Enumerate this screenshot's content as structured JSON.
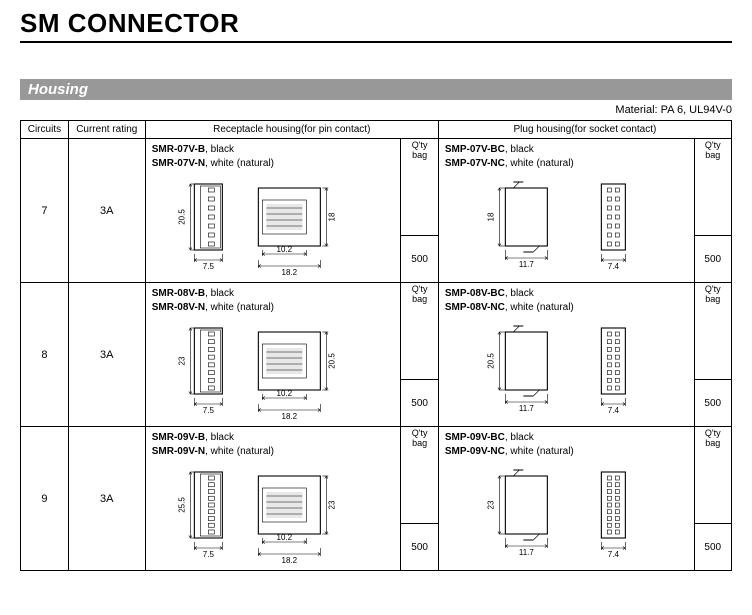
{
  "title": "SM CONNECTOR",
  "section": "Housing",
  "material": "Material: PA 6, UL94V-0",
  "headers": {
    "circuits": "Circuits",
    "current": "Current rating",
    "receptacle": "Receptacle housing(for pin contact)",
    "plug": "Plug housing(for socket contact)",
    "qty": "Q'ty / bag"
  },
  "rows": [
    {
      "circuits": "7",
      "rating": "3A",
      "recept_parts": [
        {
          "pn": "SMR-07V-B",
          "color": "black"
        },
        {
          "pn": "SMR-07V-N",
          "color": "white (natural)"
        }
      ],
      "recept_dims": {
        "h": "20.5",
        "w1": "7.5",
        "w2": "10.2",
        "w3": "18.2",
        "h2": "18"
      },
      "recept_qty": "500",
      "plug_parts": [
        {
          "pn": "SMP-07V-BC",
          "color": "black"
        },
        {
          "pn": "SMP-07V-NC",
          "color": "white (natural)"
        }
      ],
      "plug_dims": {
        "h": "18",
        "w1": "11.7",
        "w2": "7.4"
      },
      "plug_qty": "500"
    },
    {
      "circuits": "8",
      "rating": "3A",
      "recept_parts": [
        {
          "pn": "SMR-08V-B",
          "color": "black"
        },
        {
          "pn": "SMR-08V-N",
          "color": "white (natural)"
        }
      ],
      "recept_dims": {
        "h": "23",
        "w1": "7.5",
        "w2": "10.2",
        "w3": "18.2",
        "h2": "20.5"
      },
      "recept_qty": "500",
      "plug_parts": [
        {
          "pn": "SMP-08V-BC",
          "color": "black"
        },
        {
          "pn": "SMP-08V-NC",
          "color": "white (natural)"
        }
      ],
      "plug_dims": {
        "h": "20.5",
        "w1": "11.7",
        "w2": "7.4"
      },
      "plug_qty": "500"
    },
    {
      "circuits": "9",
      "rating": "3A",
      "recept_parts": [
        {
          "pn": "SMR-09V-B",
          "color": "black"
        },
        {
          "pn": "SMR-09V-N",
          "color": "white (natural)"
        }
      ],
      "recept_dims": {
        "h": "25.5",
        "w1": "7.5",
        "w2": "10.2",
        "w3": "18.2",
        "h2": "23"
      },
      "recept_qty": "500",
      "plug_parts": [
        {
          "pn": "SMP-09V-BC",
          "color": "black"
        },
        {
          "pn": "SMP-09V-NC",
          "color": "white (natural)"
        }
      ],
      "plug_dims": {
        "h": "23",
        "w1": "11.7",
        "w2": "7.4"
      },
      "plug_qty": "500"
    }
  ]
}
